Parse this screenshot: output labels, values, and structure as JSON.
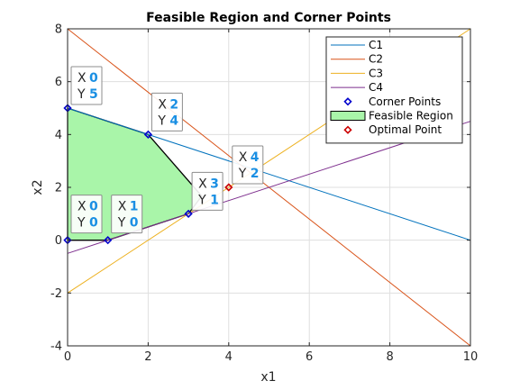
{
  "chart_data": {
    "type": "line",
    "title": "Feasible Region and Corner Points",
    "xlabel": "x1",
    "ylabel": "x2",
    "xlim": [
      0,
      10
    ],
    "ylim": [
      -4,
      8
    ],
    "xticks": [
      0,
      2,
      4,
      6,
      8,
      10
    ],
    "yticks": [
      -4,
      -2,
      0,
      2,
      4,
      6,
      8
    ],
    "xtick_labels": [
      "0",
      "2",
      "4",
      "6",
      "8",
      "10"
    ],
    "ytick_labels": [
      "-4",
      "-2",
      "0",
      "2",
      "4",
      "6",
      "8"
    ],
    "grid": true,
    "legend_position": "top-right",
    "series": [
      {
        "name": "C1",
        "color": "#0072bd",
        "x": [
          0,
          10
        ],
        "y": [
          5,
          0
        ]
      },
      {
        "name": "C2",
        "color": "#d95319",
        "x": [
          0,
          10
        ],
        "y": [
          8,
          -4
        ]
      },
      {
        "name": "C3",
        "color": "#edb120",
        "x": [
          0,
          10
        ],
        "y": [
          -2,
          8
        ]
      },
      {
        "name": "C4",
        "color": "#7e2f8e",
        "x": [
          0,
          10
        ],
        "y": [
          -0.5,
          4.5
        ]
      }
    ],
    "corner_points": {
      "name": "Corner Points",
      "color": "#0000cc",
      "points": [
        [
          0,
          0
        ],
        [
          1,
          0
        ],
        [
          3,
          1
        ],
        [
          2,
          4
        ],
        [
          0,
          5
        ]
      ]
    },
    "feasible_region": {
      "name": "Feasible Region",
      "fill": "#a9f5a9",
      "polygon": [
        [
          0,
          0
        ],
        [
          1,
          0
        ],
        [
          3,
          1
        ],
        [
          3.33,
          1.67
        ],
        [
          2,
          4
        ],
        [
          0,
          5
        ]
      ]
    },
    "optimal_point": {
      "name": "Optimal Point",
      "color": "#cc0000",
      "point": [
        4,
        2
      ]
    },
    "datatips": [
      {
        "x_label": "X",
        "x": "0",
        "y_label": "Y",
        "y": "5"
      },
      {
        "x_label": "X",
        "x": "2",
        "y_label": "Y",
        "y": "4"
      },
      {
        "x_label": "X",
        "x": "4",
        "y_label": "Y",
        "y": "2"
      },
      {
        "x_label": "X",
        "x": "3",
        "y_label": "Y",
        "y": "1"
      },
      {
        "x_label": "X",
        "x": "0",
        "y_label": "Y",
        "y": "0"
      },
      {
        "x_label": "X",
        "x": "1",
        "y_label": "Y",
        "y": "0"
      }
    ]
  }
}
